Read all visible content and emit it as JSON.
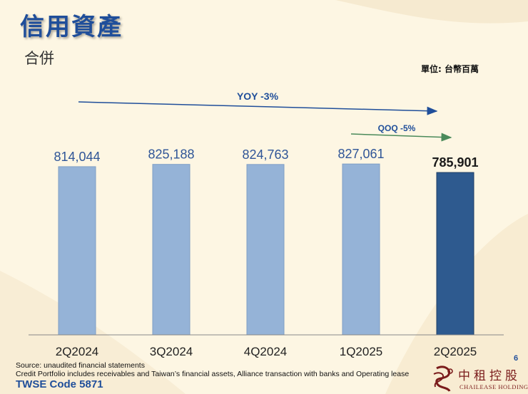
{
  "header": {
    "title": "信用資產",
    "subtitle": "合併",
    "unit": "單位: 台幣百萬"
  },
  "chart_data": {
    "type": "bar",
    "categories": [
      "2Q2024",
      "3Q2024",
      "4Q2024",
      "1Q2025",
      "2Q2025"
    ],
    "values": [
      814044,
      825188,
      824763,
      827061,
      785901
    ],
    "labels": [
      "814,044",
      "825,188",
      "824,763",
      "827,061",
      "785,901"
    ],
    "highlight_index": 4,
    "ylim": [
      0,
      1000000
    ],
    "annotations": [
      {
        "text": "YOY -3%",
        "from": "2Q2024",
        "to": "2Q2025"
      },
      {
        "text": "QOQ -5%",
        "from": "1Q2025",
        "to": "2Q2025"
      }
    ],
    "colors": {
      "bar": "#95b3d7",
      "bar_highlight": "#2e5a8f",
      "value_label": "#2f5597",
      "value_label_highlight": "#1a1a1a",
      "arrow_yoy": "#1f4e9a",
      "arrow_qoq": "#4a8a5a"
    }
  },
  "footer": {
    "source": "Source: unaudited financial statements",
    "note": "Credit Portfolio includes receivables and Taiwan’s financial assets, Alliance transaction with banks and Operating lease",
    "code": "TWSE Code 5871",
    "page": "6"
  },
  "logo": {
    "cn": "中租控股",
    "en": "CHAILEASE HOLDING"
  }
}
